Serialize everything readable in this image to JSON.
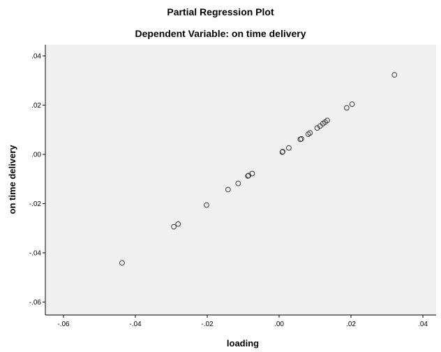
{
  "chart_data": {
    "type": "scatter",
    "title": "Partial Regression Plot",
    "subtitle": "Dependent Variable: on time delivery",
    "xlabel": "loading",
    "ylabel": "on time delivery",
    "xlim": [
      -0.065,
      0.045
    ],
    "ylim": [
      -0.065,
      0.045
    ],
    "x_ticks": [
      -0.06,
      -0.04,
      -0.02,
      0.0,
      0.02,
      0.04
    ],
    "x_tick_labels": [
      "-.06",
      "-.04",
      "-.02",
      ".00",
      ".02",
      ".04"
    ],
    "y_ticks": [
      0.04,
      0.02,
      0.0,
      -0.02,
      -0.04,
      -0.06
    ],
    "y_tick_labels": [
      ".04",
      ".02",
      ".00",
      "-.02",
      "-.04",
      "-.06"
    ],
    "grid": false,
    "marker": "hollow-circle",
    "colors": {
      "plot_background": "#f0f0f0",
      "marker_stroke": "#3c3c3c",
      "axis": "#000000"
    },
    "points": [
      {
        "x": -0.0437,
        "y": -0.0441
      },
      {
        "x": -0.0293,
        "y": -0.0294
      },
      {
        "x": -0.0281,
        "y": -0.0283
      },
      {
        "x": -0.0202,
        "y": -0.0206
      },
      {
        "x": -0.0142,
        "y": -0.0143
      },
      {
        "x": -0.0114,
        "y": -0.0118
      },
      {
        "x": -0.0087,
        "y": -0.0088
      },
      {
        "x": -0.0085,
        "y": -0.0086
      },
      {
        "x": -0.0075,
        "y": -0.0078
      },
      {
        "x": 0.0009,
        "y": 0.0009
      },
      {
        "x": 0.001,
        "y": 0.0011
      },
      {
        "x": 0.0027,
        "y": 0.0026
      },
      {
        "x": 0.0059,
        "y": 0.0061
      },
      {
        "x": 0.0062,
        "y": 0.0063
      },
      {
        "x": 0.0081,
        "y": 0.0082
      },
      {
        "x": 0.0086,
        "y": 0.0087
      },
      {
        "x": 0.0106,
        "y": 0.0107
      },
      {
        "x": 0.0114,
        "y": 0.0115
      },
      {
        "x": 0.0122,
        "y": 0.0125
      },
      {
        "x": 0.0128,
        "y": 0.0131
      },
      {
        "x": 0.0134,
        "y": 0.0138
      },
      {
        "x": 0.0188,
        "y": 0.0189
      },
      {
        "x": 0.0203,
        "y": 0.0204
      },
      {
        "x": 0.0321,
        "y": 0.0323
      }
    ]
  }
}
